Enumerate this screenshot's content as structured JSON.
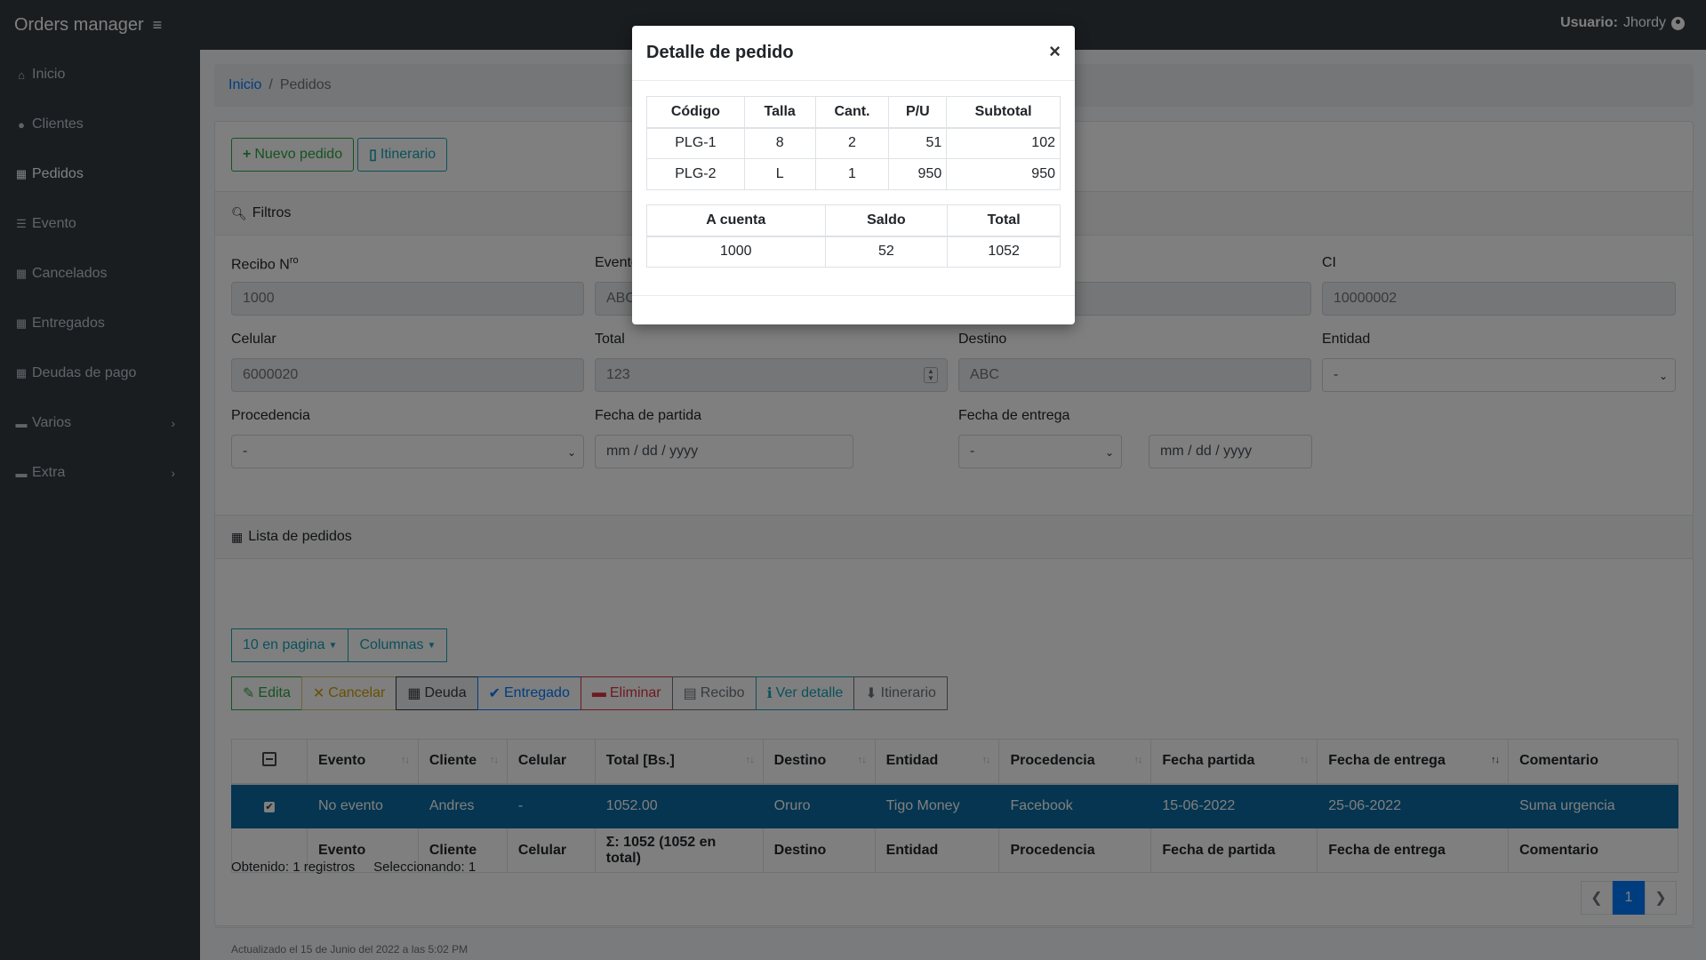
{
  "app": {
    "title": "Orders manager",
    "user_label": "Usuario:",
    "user_name": "Jhordy"
  },
  "sidebar": {
    "items": [
      {
        "label": "Inicio"
      },
      {
        "label": "Clientes"
      },
      {
        "label": "Pedidos"
      },
      {
        "label": "Evento"
      },
      {
        "label": "Cancelados"
      },
      {
        "label": "Entregados"
      },
      {
        "label": "Deudas de pago"
      },
      {
        "label": "Varios"
      },
      {
        "label": "Extra"
      }
    ]
  },
  "breadcrumb": {
    "home": "Inicio",
    "current": "Pedidos"
  },
  "toolbar": {
    "new_order": "Nuevo pedido",
    "itinerary": "Itinerario"
  },
  "filters": {
    "title": "Filtros",
    "receipt_label": "Recibo N",
    "receipt_sup": "ro",
    "receipt_value": "1000",
    "event_label": "Evento",
    "event_value": "ABC",
    "ci_label": "CI",
    "ci_value": "10000002",
    "phone_label": "Celular",
    "phone_value": "6000020",
    "total_label": "Total",
    "total_value": "123",
    "destination_label": "Destino",
    "destination_value": "ABC",
    "entity_label": "Entidad",
    "entity_value": "-",
    "origin_label": "Procedencia",
    "origin_value": "-",
    "departure_label": "Fecha de partida",
    "departure_placeholder": "mm / dd / yyyy",
    "delivery_label": "Fecha de entrega",
    "delivery_select": "-",
    "delivery_placeholder": "mm / dd / yyyy"
  },
  "list": {
    "title": "Lista de pedidos",
    "per_page": "10 en pagina",
    "columns": "Columnas",
    "actions": {
      "edit": "Edita",
      "cancel": "Cancelar",
      "debt": "Deuda",
      "delivered": "Entregado",
      "delete": "Eliminar",
      "receipt": "Recibo",
      "detail": "Ver detalle",
      "itinerary": "Itinerario"
    },
    "headers": [
      "Evento",
      "Cliente",
      "Celular",
      "Total [Bs.]",
      "Destino",
      "Entidad",
      "Procedencia",
      "Fecha partida",
      "Fecha de entrega",
      "Comentario"
    ],
    "rows": [
      [
        "No evento",
        "Andres",
        "-",
        "1052.00",
        "Oruro",
        "Tigo Money",
        "Facebook",
        "15-06-2022",
        "25-06-2022",
        "Suma urgencia"
      ]
    ],
    "footer": [
      "Evento",
      "Cliente",
      "Celular",
      "Σ: 1052 (1052 en total)",
      "Destino",
      "Entidad",
      "Procedencia",
      "Fecha de partida",
      "Fecha de entrega",
      "Comentario"
    ],
    "obtained": "Obtenido: 1 registros",
    "selected": "Seleccionando: 1",
    "page": "1",
    "prev": "❮",
    "next": "❯",
    "updated": "Actualizado el 15 de Junio del 2022 a las 5:02 PM"
  },
  "modal": {
    "title": "Detalle de pedido",
    "close": "×",
    "items_headers": [
      "Código",
      "Talla",
      "Cant.",
      "P/U",
      "Subtotal"
    ],
    "items": [
      [
        "PLG-1",
        "8",
        "2",
        "51",
        "102"
      ],
      [
        "PLG-2",
        "L",
        "1",
        "950",
        "950"
      ]
    ],
    "totals_headers": [
      "A cuenta",
      "Saldo",
      "Total"
    ],
    "totals": [
      "1000",
      "52",
      "1052"
    ]
  }
}
